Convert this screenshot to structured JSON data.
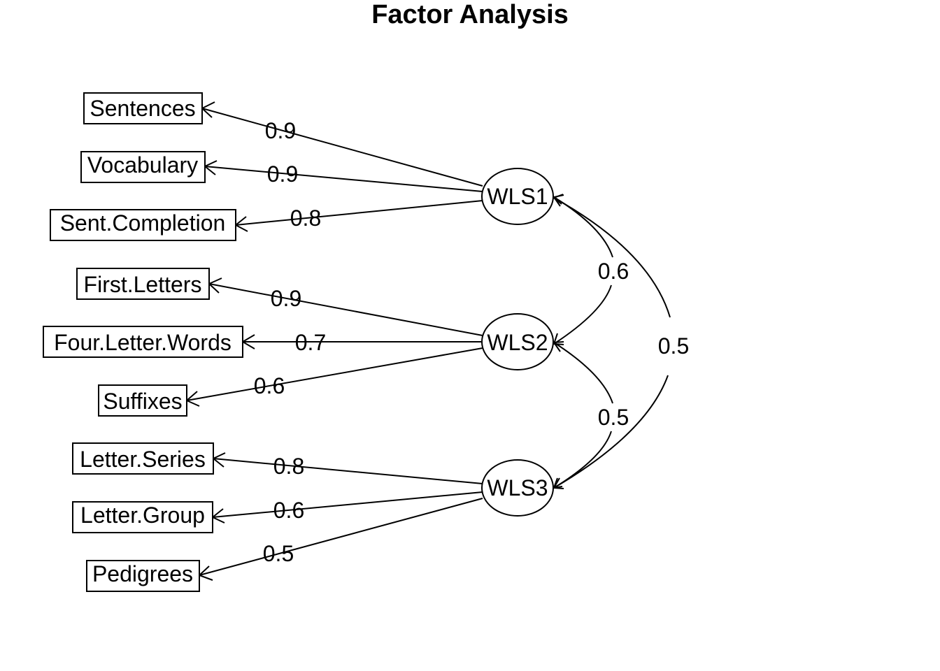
{
  "title": "Factor Analysis",
  "factors": [
    "WLS1",
    "WLS2",
    "WLS3"
  ],
  "indicators": [
    "Sentences",
    "Vocabulary",
    "Sent.Completion",
    "First.Letters",
    "Four.Letter.Words",
    "Suffixes",
    "Letter.Series",
    "Letter.Group",
    "Pedigrees"
  ],
  "loadings": [
    {
      "factor": "WLS1",
      "indicator": "Sentences",
      "value": "0.9"
    },
    {
      "factor": "WLS1",
      "indicator": "Vocabulary",
      "value": "0.9"
    },
    {
      "factor": "WLS1",
      "indicator": "Sent.Completion",
      "value": "0.8"
    },
    {
      "factor": "WLS2",
      "indicator": "First.Letters",
      "value": "0.9"
    },
    {
      "factor": "WLS2",
      "indicator": "Four.Letter.Words",
      "value": "0.7"
    },
    {
      "factor": "WLS2",
      "indicator": "Suffixes",
      "value": "0.6"
    },
    {
      "factor": "WLS3",
      "indicator": "Letter.Series",
      "value": "0.8"
    },
    {
      "factor": "WLS3",
      "indicator": "Letter.Group",
      "value": "0.6"
    },
    {
      "factor": "WLS3",
      "indicator": "Pedigrees",
      "value": "0.5"
    }
  ],
  "correlations": [
    {
      "from": "WLS1",
      "to": "WLS2",
      "value": "0.6"
    },
    {
      "from": "WLS2",
      "to": "WLS3",
      "value": "0.5"
    },
    {
      "from": "WLS1",
      "to": "WLS3",
      "value": "0.5"
    }
  ]
}
